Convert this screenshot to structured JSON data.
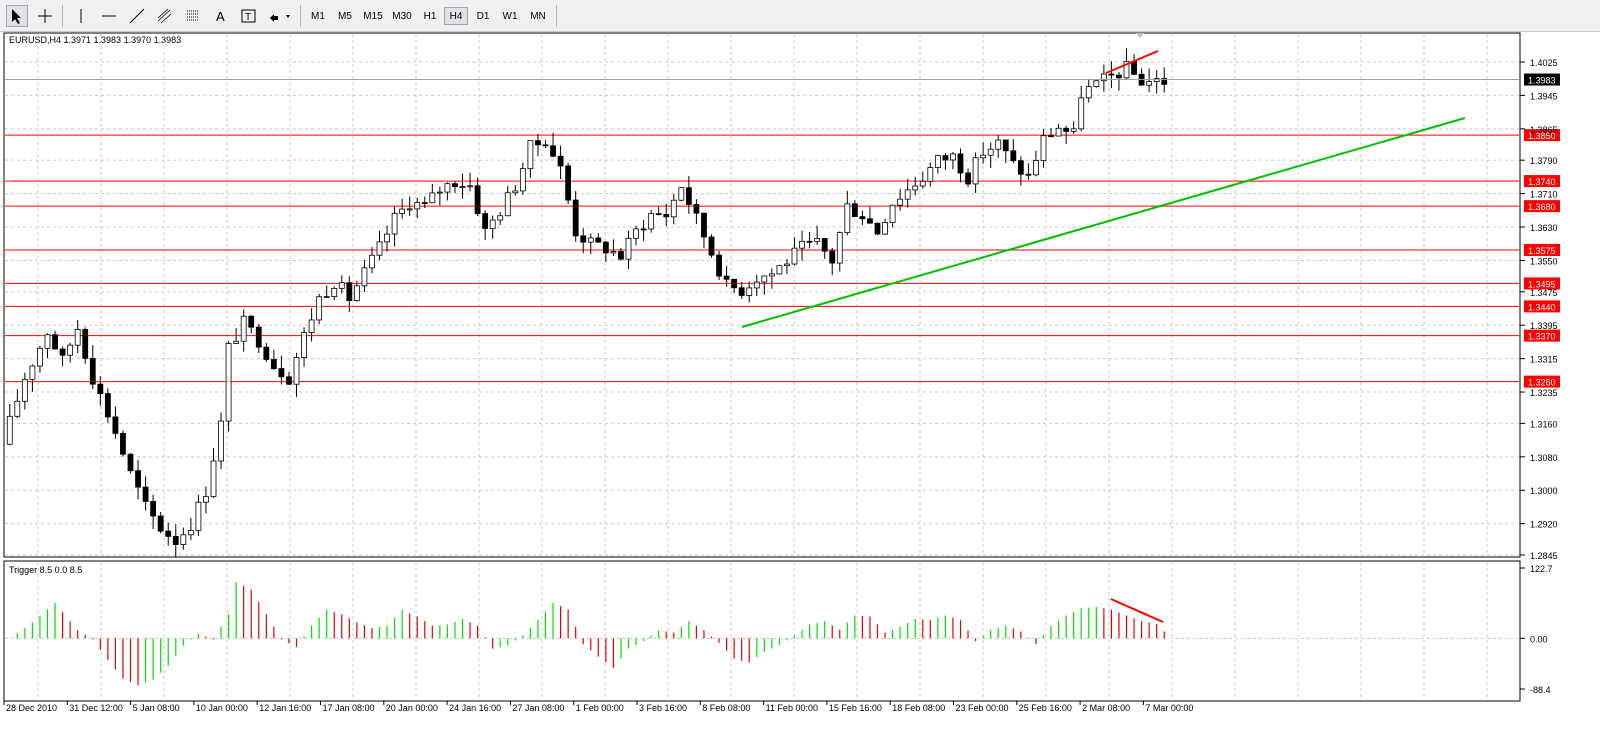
{
  "toolbar": {
    "tools": [
      {
        "name": "cursor-tool",
        "icon": "arrow-cursor-icon"
      },
      {
        "name": "crosshair-tool",
        "icon": "crosshair-icon"
      },
      {
        "name": "vertical-line-tool",
        "icon": "vertical-line-icon"
      },
      {
        "name": "horizontal-line-tool",
        "icon": "horizontal-line-icon"
      },
      {
        "name": "trendline-tool",
        "icon": "trendline-icon"
      },
      {
        "name": "equidistant-channel-tool",
        "icon": "channel-icon"
      },
      {
        "name": "fibonacci-tool",
        "icon": "fibonacci-icon"
      },
      {
        "name": "text-tool",
        "icon": "text-A-icon"
      },
      {
        "name": "text-label-tool",
        "icon": "text-label-icon"
      },
      {
        "name": "arrows-tool",
        "icon": "arrows-dropdown-icon"
      }
    ],
    "timeframes": [
      "M1",
      "M5",
      "M15",
      "M30",
      "H1",
      "H4",
      "D1",
      "W1",
      "MN"
    ],
    "active_timeframe": "H4"
  },
  "main_chart": {
    "title": "EURUSD,H4  1.3971 1.3983 1.3970 1.3983",
    "current_price": "1.3983",
    "price_ticks": [
      "1.4025",
      "1.3945",
      "1.3865",
      "1.3790",
      "1.3710",
      "1.3630",
      "1.3550",
      "1.3475",
      "1.3395",
      "1.3315",
      "1.3235",
      "1.3160",
      "1.3080",
      "1.3000",
      "1.2920",
      "1.2845"
    ],
    "hlines": [
      {
        "label": "1.3850",
        "value": 1.385
      },
      {
        "label": "1.3740",
        "value": 1.374
      },
      {
        "label": "1.3680",
        "value": 1.368
      },
      {
        "label": "1.3575",
        "value": 1.3575
      },
      {
        "label": "1.3495",
        "value": 1.3495
      },
      {
        "label": "1.3440",
        "value": 1.344
      },
      {
        "label": "1.3370",
        "value": 1.337
      },
      {
        "label": "1.3260",
        "value": 1.326
      }
    ],
    "colors": {
      "hline": "#ff0000",
      "trendline": "#00c000",
      "divergence": "#ff0000",
      "current_price_bg": "#000000"
    }
  },
  "oscillator": {
    "title": "Trigger 8.5 0.0 8.5",
    "ticks": [
      "122.7",
      "0.00",
      "-88.4"
    ],
    "colors": {
      "up": "#00e000",
      "down": "#e00000"
    }
  },
  "time_axis": [
    "28 Dec 2010",
    "31 Dec 12:00",
    "5 Jan 08:00",
    "10 Jan 00:00",
    "12 Jan 16:00",
    "17 Jan 08:00",
    "20 Jan 00:00",
    "24 Jan 16:00",
    "27 Jan 08:00",
    "1 Feb 00:00",
    "3 Feb 16:00",
    "8 Feb 08:00",
    "11 Feb 00:00",
    "15 Feb 16:00",
    "18 Feb 08:00",
    "23 Feb 00:00",
    "25 Feb 16:00",
    "2 Mar 08:00",
    "7 Mar 00:00"
  ],
  "chart_data": {
    "type": "candlestick",
    "symbol": "EURUSD",
    "timeframe": "H4",
    "ylim": [
      1.2845,
      1.4025
    ],
    "oscillator_ylim": [
      -88.4,
      122.7
    ],
    "price_path": [
      [
        0,
        1.311
      ],
      [
        3,
        1.327
      ],
      [
        6,
        1.338
      ],
      [
        8,
        1.331
      ],
      [
        10,
        1.339
      ],
      [
        12,
        1.327
      ],
      [
        15,
        1.314
      ],
      [
        17,
        1.304
      ],
      [
        19,
        1.296
      ],
      [
        21,
        1.291
      ],
      [
        23,
        1.288
      ],
      [
        25,
        1.292
      ],
      [
        27,
        1.3
      ],
      [
        29,
        1.316
      ],
      [
        30,
        1.334
      ],
      [
        32,
        1.34
      ],
      [
        34,
        1.336
      ],
      [
        36,
        1.33
      ],
      [
        38,
        1.327
      ],
      [
        40,
        1.337
      ],
      [
        42,
        1.346
      ],
      [
        44,
        1.35
      ],
      [
        46,
        1.346
      ],
      [
        48,
        1.352
      ],
      [
        50,
        1.358
      ],
      [
        52,
        1.365
      ],
      [
        54,
        1.369
      ],
      [
        56,
        1.368
      ],
      [
        58,
        1.372
      ],
      [
        60,
        1.374
      ],
      [
        62,
        1.373
      ],
      [
        64,
        1.362
      ],
      [
        66,
        1.367
      ],
      [
        68,
        1.373
      ],
      [
        70,
        1.382
      ],
      [
        72,
        1.384
      ],
      [
        74,
        1.377
      ],
      [
        76,
        1.362
      ],
      [
        78,
        1.359
      ],
      [
        80,
        1.358
      ],
      [
        82,
        1.356
      ],
      [
        84,
        1.362
      ],
      [
        86,
        1.366
      ],
      [
        88,
        1.366
      ],
      [
        90,
        1.373
      ],
      [
        92,
        1.365
      ],
      [
        94,
        1.357
      ],
      [
        96,
        1.349
      ],
      [
        98,
        1.348
      ],
      [
        100,
        1.351
      ],
      [
        102,
        1.352
      ],
      [
        104,
        1.355
      ],
      [
        106,
        1.358
      ],
      [
        108,
        1.359
      ],
      [
        110,
        1.355
      ],
      [
        112,
        1.368
      ],
      [
        114,
        1.366
      ],
      [
        116,
        1.362
      ],
      [
        118,
        1.369
      ],
      [
        120,
        1.372
      ],
      [
        122,
        1.375
      ],
      [
        124,
        1.379
      ],
      [
        126,
        1.38
      ],
      [
        128,
        1.375
      ],
      [
        130,
        1.381
      ],
      [
        132,
        1.383
      ],
      [
        134,
        1.378
      ],
      [
        136,
        1.375
      ],
      [
        138,
        1.384
      ],
      [
        140,
        1.387
      ],
      [
        142,
        1.385
      ],
      [
        143,
        1.395
      ],
      [
        145,
        1.397
      ],
      [
        147,
        1.399
      ],
      [
        149,
        1.401
      ],
      [
        151,
        1.398
      ],
      [
        153,
        1.398
      ]
    ],
    "oscillator_path": [
      [
        0,
        0
      ],
      [
        3,
        28
      ],
      [
        6,
        62
      ],
      [
        9,
        14
      ],
      [
        11,
        -2
      ],
      [
        13,
        -38
      ],
      [
        15,
        -70
      ],
      [
        17,
        -82
      ],
      [
        19,
        -72
      ],
      [
        21,
        -48
      ],
      [
        23,
        -12
      ],
      [
        25,
        8
      ],
      [
        27,
        -2
      ],
      [
        29,
        42
      ],
      [
        30,
        98
      ],
      [
        32,
        85
      ],
      [
        34,
        42
      ],
      [
        36,
        -2
      ],
      [
        38,
        -15
      ],
      [
        40,
        22
      ],
      [
        42,
        50
      ],
      [
        44,
        42
      ],
      [
        46,
        28
      ],
      [
        48,
        18
      ],
      [
        50,
        22
      ],
      [
        52,
        50
      ],
      [
        54,
        38
      ],
      [
        56,
        22
      ],
      [
        58,
        24
      ],
      [
        60,
        34
      ],
      [
        62,
        22
      ],
      [
        64,
        -18
      ],
      [
        66,
        -12
      ],
      [
        68,
        5
      ],
      [
        70,
        32
      ],
      [
        72,
        62
      ],
      [
        74,
        50
      ],
      [
        76,
        -10
      ],
      [
        78,
        -32
      ],
      [
        80,
        -52
      ],
      [
        82,
        -18
      ],
      [
        84,
        -5
      ],
      [
        86,
        14
      ],
      [
        88,
        10
      ],
      [
        90,
        30
      ],
      [
        92,
        14
      ],
      [
        94,
        -8
      ],
      [
        96,
        -36
      ],
      [
        98,
        -42
      ],
      [
        100,
        -24
      ],
      [
        102,
        -12
      ],
      [
        104,
        5
      ],
      [
        106,
        24
      ],
      [
        108,
        30
      ],
      [
        110,
        15
      ],
      [
        112,
        40
      ],
      [
        114,
        38
      ],
      [
        116,
        10
      ],
      [
        118,
        20
      ],
      [
        120,
        34
      ],
      [
        122,
        32
      ],
      [
        124,
        40
      ],
      [
        126,
        32
      ],
      [
        128,
        -5
      ],
      [
        130,
        14
      ],
      [
        132,
        22
      ],
      [
        134,
        12
      ],
      [
        136,
        -10
      ],
      [
        138,
        22
      ],
      [
        140,
        40
      ],
      [
        142,
        52
      ],
      [
        144,
        55
      ],
      [
        146,
        50
      ],
      [
        148,
        40
      ],
      [
        150,
        30
      ],
      [
        152,
        25
      ],
      [
        153,
        12
      ]
    ]
  }
}
